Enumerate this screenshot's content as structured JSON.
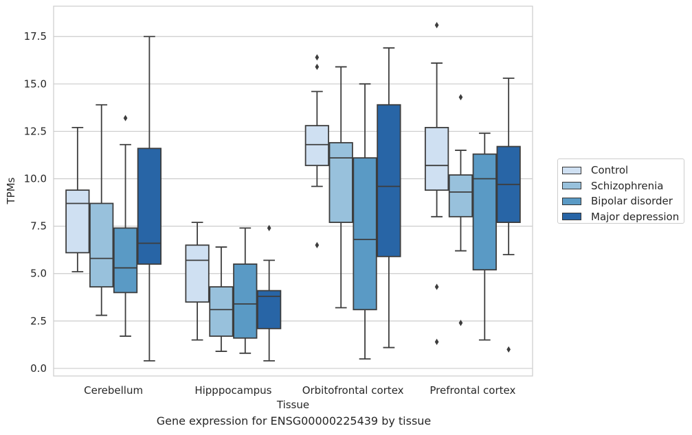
{
  "chart_data": {
    "type": "box",
    "caption": "Gene expression for ENSG00000225439 by tissue",
    "xlabel": "Tissue",
    "ylabel": "TPMs",
    "ylim": [
      -0.4,
      19.1
    ],
    "yticks": [
      "0.0",
      "2.5",
      "5.0",
      "7.5",
      "10.0",
      "12.5",
      "15.0",
      "17.5"
    ],
    "ytick_values": [
      0,
      2.5,
      5,
      7.5,
      10,
      12.5,
      15,
      17.5
    ],
    "grid": "horizontal",
    "legend_position": "right",
    "categories": [
      "Cerebellum",
      "Hipppocampus",
      "Orbitofrontal cortex",
      "Prefrontal cortex"
    ],
    "series": [
      {
        "name": "Control",
        "color": "#cfe0f2",
        "boxes": [
          {
            "whislo": 5.1,
            "q1": 6.1,
            "med": 8.7,
            "q3": 9.4,
            "whishi": 12.7,
            "fliers": []
          },
          {
            "whislo": 1.5,
            "q1": 3.5,
            "med": 5.7,
            "q3": 6.5,
            "whishi": 7.7,
            "fliers": []
          },
          {
            "whislo": 9.6,
            "q1": 10.7,
            "med": 11.8,
            "q3": 12.8,
            "whishi": 14.6,
            "fliers": [
              6.5,
              15.9,
              16.4
            ]
          },
          {
            "whislo": 8.0,
            "q1": 9.4,
            "med": 10.7,
            "q3": 12.7,
            "whishi": 16.1,
            "fliers": [
              1.4,
              4.3,
              18.1
            ]
          }
        ]
      },
      {
        "name": "Schizophrenia",
        "color": "#98c1dc",
        "boxes": [
          {
            "whislo": 2.8,
            "q1": 4.3,
            "med": 5.8,
            "q3": 8.7,
            "whishi": 13.9,
            "fliers": []
          },
          {
            "whislo": 0.9,
            "q1": 1.7,
            "med": 3.1,
            "q3": 4.3,
            "whishi": 6.4,
            "fliers": []
          },
          {
            "whislo": 3.2,
            "q1": 7.7,
            "med": 11.1,
            "q3": 11.9,
            "whishi": 15.9,
            "fliers": []
          },
          {
            "whislo": 6.2,
            "q1": 8.0,
            "med": 9.3,
            "q3": 10.2,
            "whishi": 11.5,
            "fliers": [
              2.4,
              14.3
            ]
          }
        ]
      },
      {
        "name": "Bipolar disorder",
        "color": "#5a9ac5",
        "boxes": [
          {
            "whislo": 1.7,
            "q1": 4.0,
            "med": 5.3,
            "q3": 7.4,
            "whishi": 11.8,
            "fliers": [
              13.2
            ]
          },
          {
            "whislo": 0.8,
            "q1": 1.6,
            "med": 3.4,
            "q3": 5.5,
            "whishi": 7.4,
            "fliers": []
          },
          {
            "whislo": 0.5,
            "q1": 3.1,
            "med": 6.8,
            "q3": 11.1,
            "whishi": 15.0,
            "fliers": []
          },
          {
            "whislo": 1.5,
            "q1": 5.2,
            "med": 10.0,
            "q3": 11.3,
            "whishi": 12.4,
            "fliers": []
          }
        ]
      },
      {
        "name": "Major depression",
        "color": "#2865a6",
        "boxes": [
          {
            "whislo": 0.4,
            "q1": 5.5,
            "med": 6.6,
            "q3": 11.6,
            "whishi": 17.5,
            "fliers": []
          },
          {
            "whislo": 0.4,
            "q1": 2.1,
            "med": 3.8,
            "q3": 4.1,
            "whishi": 5.7,
            "fliers": [
              7.4
            ]
          },
          {
            "whislo": 1.1,
            "q1": 5.9,
            "med": 9.6,
            "q3": 13.9,
            "whishi": 16.9,
            "fliers": []
          },
          {
            "whislo": 6.0,
            "q1": 7.7,
            "med": 9.7,
            "q3": 11.7,
            "whishi": 15.3,
            "fliers": [
              1.0
            ]
          }
        ]
      }
    ]
  }
}
